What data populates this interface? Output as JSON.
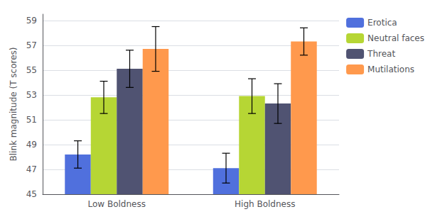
{
  "chart_data": {
    "type": "bar",
    "categories": [
      "Low Boldness",
      "High Boldness"
    ],
    "series": [
      {
        "name": "Erotica",
        "values": [
          48.2,
          47.1
        ],
        "errors": [
          1.1,
          1.2
        ]
      },
      {
        "name": "Neutral faces",
        "values": [
          52.8,
          52.9
        ],
        "errors": [
          1.3,
          1.4
        ]
      },
      {
        "name": "Threat",
        "values": [
          55.1,
          52.3
        ],
        "errors": [
          1.5,
          1.6
        ]
      },
      {
        "name": "Mutilations",
        "values": [
          56.7,
          57.3
        ],
        "errors": [
          1.8,
          1.1
        ]
      }
    ],
    "ylabel": "Blink magnitude (T scores)",
    "ylim": [
      45,
      59.5
    ],
    "yticks": [
      45,
      47,
      49,
      51,
      53,
      55,
      57,
      59
    ],
    "grid": true,
    "legend": "right"
  }
}
